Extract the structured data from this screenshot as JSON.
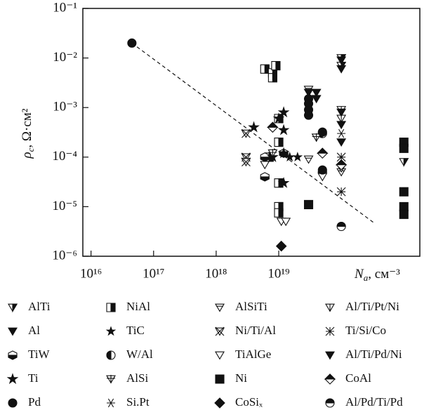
{
  "chart_data": {
    "type": "scatter",
    "log_x": true,
    "log_y": true,
    "xlabel": {
      "main": "N",
      "sub": "a",
      "rest": ", см⁻³"
    },
    "ylabel": {
      "main": "ρ",
      "sub": "c",
      "rest": ", Ω·см²"
    },
    "xlim": [
      7400000000000000.0,
      1.8e+21
    ],
    "ylim": [
      1e-06,
      0.1
    ],
    "xticks": [
      {
        "value": 1e+16,
        "label": "10¹⁶"
      },
      {
        "value": 1e+17,
        "label": "10¹⁷"
      },
      {
        "value": 1e+18,
        "label": "10¹⁸"
      },
      {
        "value": 1e+19,
        "label": "10¹⁹"
      }
    ],
    "yticks": [
      {
        "value": 1e-06,
        "label": "10⁻⁶"
      },
      {
        "value": 1e-05,
        "label": "10⁻⁵"
      },
      {
        "value": 0.0001,
        "label": "10⁻⁴"
      },
      {
        "value": 0.001,
        "label": "10⁻³"
      },
      {
        "value": 0.01,
        "label": "10⁻²"
      },
      {
        "value": 0.1,
        "label": "10⁻¹"
      }
    ],
    "trend_line": {
      "x": [
        4.5e+16,
        3.5e+20
      ],
      "y": [
        0.02,
        4.5e-06
      ]
    },
    "series": [
      {
        "name": "AlTi",
        "marker": "tri-half",
        "color": "#111",
        "x": [
          1e+21,
          1e+20,
          1e+20
        ],
        "values": [
          8e-05,
          0.01,
          0.007
        ]
      },
      {
        "name": "NiAl",
        "marker": "square-half",
        "color": "#111",
        "x": [
          6e+18,
          8e+18,
          9e+18,
          8e+18,
          1e+19,
          1e+19,
          1e+19,
          1e+19,
          1e+19,
          7e+18
        ],
        "values": [
          0.006,
          0.005,
          0.007,
          0.004,
          0.0006,
          0.0002,
          3e-05,
          1e-05,
          7.5e-06,
          0.0001
        ]
      },
      {
        "name": "AlSiTi",
        "marker": "tri-bar",
        "color": "#111",
        "x": [
          3e+19,
          3e+19,
          1e+20
        ],
        "values": [
          0.0023,
          9e-05,
          5e-05
        ]
      },
      {
        "name": "Al/Ti/Pt/Ni",
        "marker": "tri-stem",
        "color": "#111",
        "x": [
          1e+20,
          1e+20
        ],
        "values": [
          0.0009,
          0.0006
        ]
      },
      {
        "name": "Al",
        "marker": "tri-filled",
        "color": "#111",
        "x": [
          1e+20,
          1e+20,
          3e+19,
          1e+20,
          1e+20,
          1e+20
        ],
        "values": [
          0.009,
          0.006,
          0.002,
          0.0008,
          0.00045,
          0.0002
        ]
      },
      {
        "name": "TiC",
        "marker": "star-small",
        "color": "#111",
        "x": [
          2e+19,
          1.5e+19
        ],
        "values": [
          0.0001,
          0.0001
        ]
      },
      {
        "name": "Ni/Ti/Al",
        "marker": "tri-cross",
        "color": "#111",
        "x": [
          3e+18,
          3e+18,
          3e+18
        ],
        "values": [
          0.0001,
          8e-05,
          0.0003
        ]
      },
      {
        "name": "Ti/Si/Co",
        "marker": "asterisk-wide",
        "color": "#111",
        "x": [
          1e+20,
          1e+20
        ],
        "values": [
          0.0001,
          2e-05
        ]
      },
      {
        "name": "TiW",
        "marker": "hex-half",
        "color": "#111",
        "x": [
          6e+18,
          6e+18,
          1.2e+19
        ],
        "values": [
          4e-05,
          0.0001,
          0.00012
        ]
      },
      {
        "name": "W/Al",
        "marker": "circle-vhalf",
        "color": "#111",
        "x": [
          5e+19,
          5e+19
        ],
        "values": [
          0.0003,
          5e-05
        ]
      },
      {
        "name": "TiAlGe",
        "marker": "tri-open",
        "color": "#111",
        "x": [
          1.1e+19,
          1.3e+19,
          1e+20,
          5e+19,
          6e+18
        ],
        "values": [
          5e-06,
          5e-06,
          6e-05,
          4e-05,
          7e-05
        ]
      },
      {
        "name": "Al/Ti/Pd/Ni",
        "marker": "tri-filled",
        "color": "#111",
        "x": [
          4e+19,
          4e+19
        ],
        "values": [
          0.002,
          0.0015
        ]
      },
      {
        "name": "Ti",
        "marker": "star",
        "color": "#111",
        "x": [
          4e+18,
          1e+19,
          1.2e+19,
          1.2e+19,
          1.2e+19,
          1.2e+19,
          8e+18
        ],
        "values": [
          0.0004,
          0.0006,
          0.0008,
          0.00035,
          0.00012,
          3e-05,
          0.0001
        ]
      },
      {
        "name": "AlSi",
        "marker": "tri-plus",
        "color": "#111",
        "x": [
          4e+19,
          8e+18
        ],
        "values": [
          0.00025,
          0.00012
        ]
      },
      {
        "name": "Ni",
        "marker": "square",
        "color": "#111",
        "x": [
          3e+19,
          1e+21,
          1e+21,
          1e+21,
          1e+21,
          1e+21
        ],
        "values": [
          1.1e-05,
          0.0002,
          0.00015,
          2e-05,
          1e-05,
          7e-06
        ]
      },
      {
        "name": "CoAl",
        "marker": "diamond-half",
        "color": "#111",
        "x": [
          8e+18,
          1e+20,
          5e+19
        ],
        "values": [
          0.0004,
          7e-05,
          0.00012
        ]
      },
      {
        "name": "Pd",
        "marker": "circle",
        "color": "#111",
        "x": [
          4.5e+16,
          3e+19,
          3e+19,
          3e+19,
          3e+19,
          5e+19,
          5e+19
        ],
        "values": [
          0.02,
          0.0015,
          0.0012,
          0.0009,
          0.0007,
          0.00032,
          5.5e-05
        ]
      },
      {
        "name": "Si.Pt",
        "marker": "asterisk",
        "color": "#111",
        "x": [
          1e+20
        ],
        "values": [
          0.0003
        ]
      },
      {
        "name": "CoSiₓ",
        "marker": "diamond",
        "color": "#111",
        "x": [
          1.1e+19
        ],
        "values": [
          1.6e-06
        ]
      },
      {
        "name": "Al/Pd/Ti/Pd",
        "marker": "circle-hhalf",
        "color": "#111",
        "x": [
          1e+20
        ],
        "values": [
          4e-06
        ]
      }
    ]
  }
}
